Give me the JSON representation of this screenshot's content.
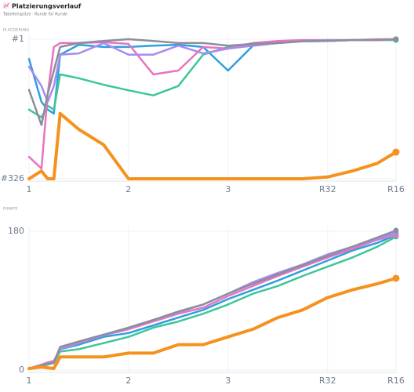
{
  "header": {
    "title": "Platzierungsverlauf",
    "subtitle": "Tabellenspitze · Runde für Runde"
  },
  "chart_data": [
    {
      "type": "line",
      "y_label": "PLATZIERUNG",
      "x": [
        0,
        2,
        3,
        4,
        5,
        8,
        12,
        16,
        20,
        24,
        28,
        32,
        36,
        40,
        44,
        48,
        52,
        56,
        59
      ],
      "xlim": [
        0,
        59
      ],
      "xticks": [
        {
          "value": 0,
          "label": "1"
        },
        {
          "value": 16,
          "label": "2"
        },
        {
          "value": 32,
          "label": "3"
        },
        {
          "value": 48,
          "label": "R32"
        },
        {
          "value": 59,
          "label": "R16"
        }
      ],
      "ylim": [
        326,
        1
      ],
      "yticks": [
        {
          "value": 1,
          "label": "#1"
        },
        {
          "value": 326,
          "label": "#326"
        }
      ],
      "grid": true,
      "series": [
        {
          "color": "#2e9fe0",
          "values": [
            47,
            147,
            165,
            174,
            37,
            14,
            19,
            19,
            16,
            14,
            19,
            74,
            16,
            10,
            5,
            5,
            3,
            3,
            1
          ]
        },
        {
          "color": "#3dc69b",
          "values": [
            165,
            183,
            156,
            165,
            83,
            92,
            107,
            120,
            132,
            110,
            37,
            19,
            16,
            10,
            6,
            5,
            3,
            3,
            3
          ]
        },
        {
          "color": "#e774c0",
          "values": [
            275,
            302,
            129,
            19,
            10,
            10,
            8,
            12,
            83,
            74,
            19,
            23,
            10,
            5,
            3,
            3,
            3,
            1,
            1
          ]
        },
        {
          "color": "#a98af0",
          "values": [
            65,
            110,
            147,
            110,
            37,
            34,
            10,
            37,
            37,
            16,
            34,
            23,
            16,
            10,
            5,
            3,
            3,
            3,
            1
          ]
        },
        {
          "color": "#8a8f99",
          "values": [
            119,
            201,
            129,
            74,
            19,
            10,
            5,
            1,
            5,
            10,
            10,
            16,
            12,
            10,
            6,
            5,
            3,
            3,
            1
          ]
        },
        {
          "color": "#f5921e",
          "values": [
            326,
            308,
            326,
            326,
            174,
            211,
            247,
            326,
            326,
            326,
            326,
            326,
            326,
            326,
            326,
            322,
            308,
            290,
            264
          ]
        }
      ]
    },
    {
      "type": "line",
      "y_label": "PUNKTE",
      "x": [
        0,
        2,
        3,
        4,
        5,
        8,
        12,
        16,
        20,
        24,
        28,
        32,
        36,
        40,
        44,
        48,
        52,
        56,
        59
      ],
      "xlim": [
        0,
        59
      ],
      "xticks": [
        {
          "value": 0,
          "label": "1"
        },
        {
          "value": 16,
          "label": "2"
        },
        {
          "value": 32,
          "label": "3"
        },
        {
          "value": 48,
          "label": "R32"
        },
        {
          "value": 59,
          "label": "R16"
        }
      ],
      "ylim": [
        0,
        180
      ],
      "yticks": [
        0,
        180
      ],
      "grid": true,
      "series": [
        {
          "color": "#2e9fe0",
          "values": [
            2,
            6,
            8,
            10,
            27,
            33,
            43,
            48,
            58,
            68,
            78,
            92,
            104,
            116,
            129,
            142,
            155,
            165,
            175
          ]
        },
        {
          "color": "#3dc69b",
          "values": [
            2,
            5,
            7,
            9,
            24,
            27,
            35,
            43,
            55,
            63,
            73,
            85,
            99,
            109,
            122,
            134,
            146,
            160,
            173
          ]
        },
        {
          "color": "#e774c0",
          "values": [
            2,
            7,
            10,
            12,
            27,
            35,
            45,
            53,
            63,
            73,
            81,
            96,
            109,
            122,
            134,
            146,
            157,
            169,
            175
          ]
        },
        {
          "color": "#a98af0",
          "values": [
            2,
            6,
            8,
            10,
            27,
            36,
            45,
            55,
            65,
            75,
            85,
            99,
            114,
            126,
            137,
            150,
            160,
            170,
            178
          ]
        },
        {
          "color": "#8a8f99",
          "values": [
            2,
            6,
            8,
            10,
            30,
            37,
            46,
            55,
            65,
            76,
            85,
            99,
            112,
            124,
            136,
            148,
            160,
            172,
            181
          ]
        },
        {
          "color": "#f5921e",
          "values": [
            2,
            4,
            3,
            2,
            17,
            17,
            17,
            22,
            22,
            33,
            33,
            43,
            53,
            68,
            78,
            94,
            104,
            112,
            119
          ]
        }
      ]
    }
  ]
}
